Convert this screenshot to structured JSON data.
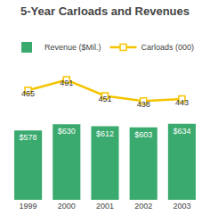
{
  "chart_data": {
    "type": "combo",
    "title": "5-Year Carloads and Revenues",
    "categories": [
      "1999",
      "2000",
      "2001",
      "2002",
      "2003"
    ],
    "series": [
      {
        "name": "Revenue ($Mil.)",
        "type": "bar",
        "color": "#3aaa6e",
        "axis": "y",
        "values": [
          578,
          630,
          612,
          603,
          634
        ],
        "value_labels": [
          "$578",
          "$630",
          "$612",
          "$603",
          "$634"
        ]
      },
      {
        "name": "Carloads (000)",
        "type": "line",
        "color": "#f5c400",
        "axis": "y2",
        "marker": "square",
        "values": [
          465,
          491,
          451,
          438,
          443
        ]
      }
    ],
    "ylim": [
      0,
      700
    ],
    "y2lim": [
      415,
      530
    ],
    "data_labels": true,
    "tick_labels": "x",
    "grid": false,
    "legend": "upper left"
  }
}
